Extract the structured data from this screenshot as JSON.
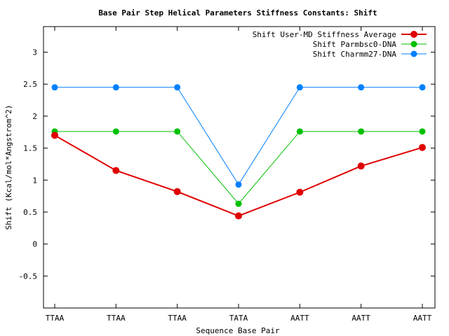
{
  "chart_data": {
    "type": "line",
    "title": "Base Pair Step Helical Parameters Stiffness Constants: Shift",
    "xlabel": "Sequence Base Pair",
    "ylabel": "Shift (Kcal/mol*Angstrom^2)",
    "categories": [
      "TTAA",
      "TTAA",
      "TTAA",
      "TATA",
      "AATT",
      "AATT",
      "AATT"
    ],
    "ylim": [
      -1,
      3.4
    ],
    "yticks": [
      -0.5,
      0,
      0.5,
      1,
      1.5,
      2,
      2.5,
      3
    ],
    "ytick_labels": [
      "-0.5",
      "0",
      "0.5",
      "1",
      "1.5",
      "2",
      "2.5",
      "3"
    ],
    "grid": false,
    "legend_position": "top-right",
    "series": [
      {
        "name": "Shift User-MD Stiffness Average",
        "color": "#e00000",
        "values": [
          1.7,
          1.15,
          0.82,
          0.44,
          0.81,
          1.22,
          1.51
        ]
      },
      {
        "name": "Shift Parmbsc0-DNA",
        "color": "#00c000",
        "values": [
          1.76,
          1.76,
          1.76,
          0.63,
          1.76,
          1.76,
          1.76
        ]
      },
      {
        "name": "Shift Charmm27-DNA",
        "color": "#0080ff",
        "values": [
          2.45,
          2.45,
          2.45,
          0.93,
          2.45,
          2.45,
          2.45
        ]
      }
    ]
  }
}
